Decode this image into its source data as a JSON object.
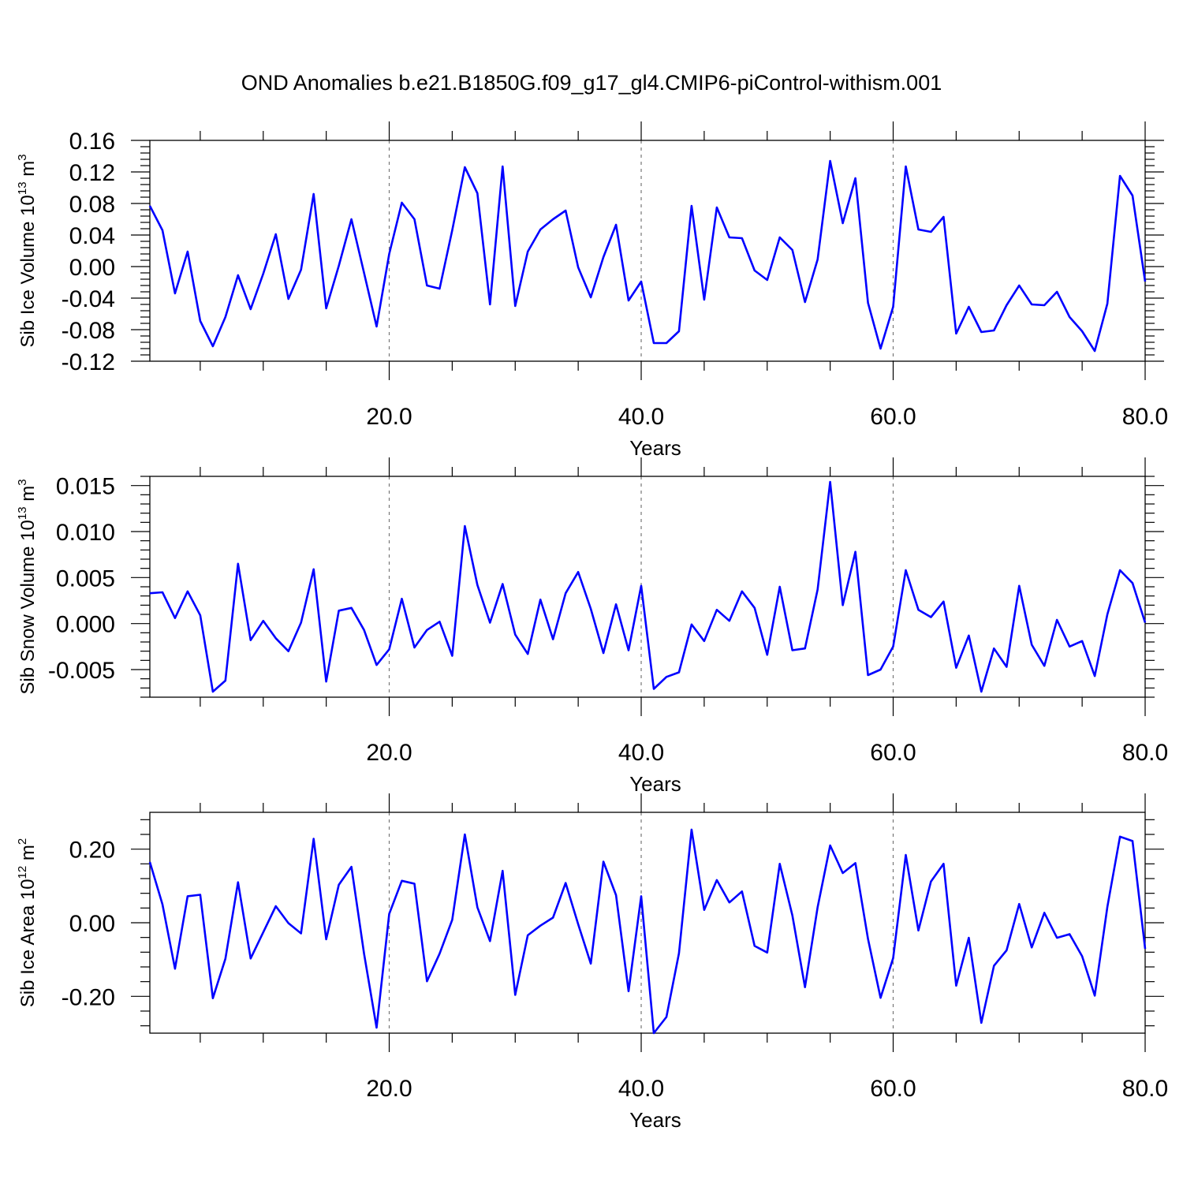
{
  "title": "OND Anomalies b.e21.B1850G.f09_g17_gl4.CMIP6-piControl-withism.001",
  "colors": {
    "line": "#0000ff",
    "grid": "#777777"
  },
  "chart_data": [
    {
      "type": "line",
      "ylabel": {
        "text": "Sib Ice Volume 10",
        "exponent": "13",
        "unit": " m",
        "unit_exponent": "3"
      },
      "xlabel": "Years",
      "xlim": [
        1,
        80
      ],
      "ylim": [
        -0.12,
        0.16
      ],
      "yticks": [
        -0.12,
        -0.08,
        -0.04,
        0.0,
        0.04,
        0.08,
        0.12,
        0.16
      ],
      "ytick_labels": [
        "-0.12",
        "-0.08",
        "-0.04",
        "0.00",
        "0.04",
        "0.08",
        "0.12",
        "0.16"
      ],
      "xticks": [
        20,
        40,
        60,
        80
      ],
      "xtick_labels": [
        "20.0",
        "40.0",
        "60.0",
        "80.0"
      ],
      "grid_x": [
        20,
        40,
        60
      ],
      "x_start": 1,
      "values": [
        0.077,
        0.046,
        -0.034,
        0.019,
        -0.069,
        -0.101,
        -0.064,
        -0.011,
        -0.054,
        -0.009,
        0.041,
        -0.041,
        -0.004,
        0.092,
        -0.053,
        0.001,
        0.06,
        -0.008,
        -0.076,
        0.016,
        0.081,
        0.06,
        -0.024,
        -0.028,
        0.046,
        0.126,
        0.093,
        -0.048,
        0.127,
        -0.05,
        0.019,
        0.047,
        0.06,
        0.071,
        -0.001,
        -0.039,
        0.012,
        0.053,
        -0.043,
        -0.019,
        -0.097,
        -0.097,
        -0.082,
        0.077,
        -0.042,
        0.075,
        0.037,
        0.036,
        -0.005,
        -0.017,
        0.037,
        0.021,
        -0.045,
        0.009,
        0.134,
        0.055,
        0.112,
        -0.046,
        -0.104,
        -0.051,
        0.127,
        0.047,
        0.044,
        0.063,
        -0.085,
        -0.051,
        -0.083,
        -0.081,
        -0.049,
        -0.024,
        -0.048,
        -0.049,
        -0.032,
        -0.064,
        -0.082,
        -0.107,
        -0.047,
        0.115,
        0.09,
        -0.019
      ]
    },
    {
      "type": "line",
      "ylabel": {
        "text": "Sib Snow Volume 10",
        "exponent": "13",
        "unit": " m",
        "unit_exponent": "3"
      },
      "xlabel": "Years",
      "xlim": [
        1,
        80
      ],
      "ylim": [
        -0.008,
        0.016
      ],
      "yticks": [
        -0.005,
        0.0,
        0.005,
        0.01,
        0.015
      ],
      "ytick_labels": [
        "-0.005",
        "0.000",
        "0.005",
        "0.010",
        "0.015"
      ],
      "xticks": [
        20,
        40,
        60,
        80
      ],
      "xtick_labels": [
        "20.0",
        "40.0",
        "60.0",
        "80.0"
      ],
      "grid_x": [
        20,
        40,
        60
      ],
      "x_start": 1,
      "values": [
        0.0033,
        0.0034,
        0.0006,
        0.0035,
        0.0009,
        -0.0074,
        -0.0062,
        0.0065,
        -0.0018,
        0.0003,
        -0.0016,
        -0.003,
        0.0001,
        0.0059,
        -0.0063,
        0.0014,
        0.0017,
        -0.0007,
        -0.0045,
        -0.0028,
        0.0027,
        -0.0026,
        -0.0007,
        0.0002,
        -0.0035,
        0.0106,
        0.0042,
        0.0001,
        0.0043,
        -0.0012,
        -0.0033,
        0.0026,
        -0.0017,
        0.0033,
        0.0056,
        0.0016,
        -0.0032,
        0.0021,
        -0.0029,
        0.0041,
        -0.0071,
        -0.0058,
        -0.0053,
        -0.0001,
        -0.0019,
        0.0015,
        0.0003,
        0.0035,
        0.0017,
        -0.0034,
        0.004,
        -0.0029,
        -0.0027,
        0.0037,
        0.0154,
        0.002,
        0.0078,
        -0.0056,
        -0.005,
        -0.0025,
        0.0058,
        0.0015,
        0.0007,
        0.0024,
        -0.0048,
        -0.0013,
        -0.0074,
        -0.0027,
        -0.0047,
        0.0041,
        -0.0023,
        -0.0046,
        0.0004,
        -0.0025,
        -0.0019,
        -0.0057,
        0.001,
        0.0058,
        0.0044,
        0.0001
      ]
    },
    {
      "type": "line",
      "ylabel": {
        "text": "Sib Ice Area 10",
        "exponent": "12",
        "unit": " m",
        "unit_exponent": "2"
      },
      "xlabel": "Years",
      "xlim": [
        1,
        80
      ],
      "ylim": [
        -0.3,
        0.3
      ],
      "yticks": [
        -0.2,
        0.0,
        0.2
      ],
      "ytick_labels": [
        "-0.20",
        "0.00",
        "0.20"
      ],
      "xticks": [
        20,
        40,
        60,
        80
      ],
      "xtick_labels": [
        "20.0",
        "40.0",
        "60.0",
        "80.0"
      ],
      "grid_x": [
        20,
        40,
        60
      ],
      "x_start": 1,
      "values": [
        0.165,
        0.05,
        -0.125,
        0.072,
        0.076,
        -0.205,
        -0.098,
        0.11,
        -0.097,
        -0.026,
        0.045,
        -0.001,
        -0.029,
        0.228,
        -0.045,
        0.103,
        0.152,
        -0.084,
        -0.285,
        0.024,
        0.114,
        0.106,
        -0.159,
        -0.084,
        0.008,
        0.24,
        0.042,
        -0.05,
        0.141,
        -0.196,
        -0.034,
        -0.008,
        0.014,
        0.108,
        -0.004,
        -0.111,
        0.166,
        0.075,
        -0.186,
        0.072,
        -0.3,
        -0.256,
        -0.083,
        0.253,
        0.035,
        0.116,
        0.055,
        0.085,
        -0.063,
        -0.081,
        0.16,
        0.02,
        -0.175,
        0.042,
        0.21,
        0.135,
        0.162,
        -0.044,
        -0.204,
        -0.096,
        0.184,
        -0.021,
        0.112,
        0.16,
        -0.171,
        -0.041,
        -0.272,
        -0.117,
        -0.075,
        0.051,
        -0.067,
        0.027,
        -0.041,
        -0.031,
        -0.091,
        -0.198,
        0.043,
        0.234,
        0.222,
        -0.071
      ]
    }
  ]
}
